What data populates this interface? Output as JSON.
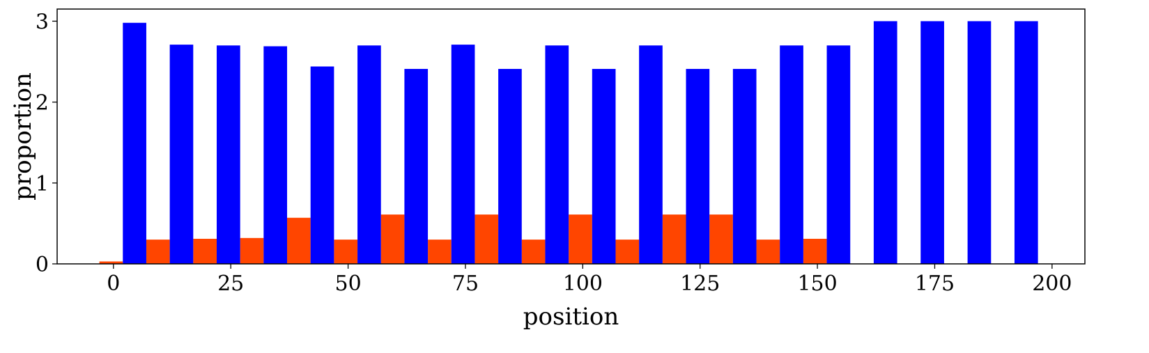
{
  "chart_data": {
    "type": "bar",
    "xlabel": "position",
    "ylabel": "proportion",
    "xlim": [
      -12,
      207
    ],
    "ylim": [
      0,
      3.15
    ],
    "x_ticks": [
      0,
      25,
      50,
      75,
      100,
      125,
      150,
      175,
      200
    ],
    "y_ticks": [
      0,
      1,
      2,
      3
    ],
    "grid": false,
    "legend": "none",
    "bar_width": 5,
    "series": [
      {
        "color": "#ff4500",
        "points": [
          {
            "x": -0.5,
            "y": 0.03
          },
          {
            "x": 9.5,
            "y": 0.3
          },
          {
            "x": 19.5,
            "y": 0.31
          },
          {
            "x": 29.5,
            "y": 0.32
          },
          {
            "x": 39.5,
            "y": 0.57
          },
          {
            "x": 49.5,
            "y": 0.3
          },
          {
            "x": 59.5,
            "y": 0.61
          },
          {
            "x": 69.5,
            "y": 0.3
          },
          {
            "x": 79.5,
            "y": 0.61
          },
          {
            "x": 89.5,
            "y": 0.3
          },
          {
            "x": 99.5,
            "y": 0.61
          },
          {
            "x": 109.5,
            "y": 0.3
          },
          {
            "x": 119.5,
            "y": 0.61
          },
          {
            "x": 129.5,
            "y": 0.61
          },
          {
            "x": 139.5,
            "y": 0.3
          },
          {
            "x": 149.5,
            "y": 0.31
          }
        ]
      },
      {
        "color": "#0000ff",
        "points": [
          {
            "x": 4.5,
            "y": 2.98
          },
          {
            "x": 14.5,
            "y": 2.71
          },
          {
            "x": 24.5,
            "y": 2.7
          },
          {
            "x": 34.5,
            "y": 2.69
          },
          {
            "x": 44.5,
            "y": 2.44
          },
          {
            "x": 54.5,
            "y": 2.7
          },
          {
            "x": 64.5,
            "y": 2.41
          },
          {
            "x": 74.5,
            "y": 2.71
          },
          {
            "x": 84.5,
            "y": 2.41
          },
          {
            "x": 94.5,
            "y": 2.7
          },
          {
            "x": 104.5,
            "y": 2.41
          },
          {
            "x": 114.5,
            "y": 2.7
          },
          {
            "x": 124.5,
            "y": 2.41
          },
          {
            "x": 134.5,
            "y": 2.41
          },
          {
            "x": 144.5,
            "y": 2.7
          },
          {
            "x": 154.5,
            "y": 2.7
          },
          {
            "x": 164.5,
            "y": 3.0
          },
          {
            "x": 174.5,
            "y": 3.0
          },
          {
            "x": 184.5,
            "y": 3.0
          },
          {
            "x": 194.5,
            "y": 3.0
          }
        ]
      }
    ]
  }
}
